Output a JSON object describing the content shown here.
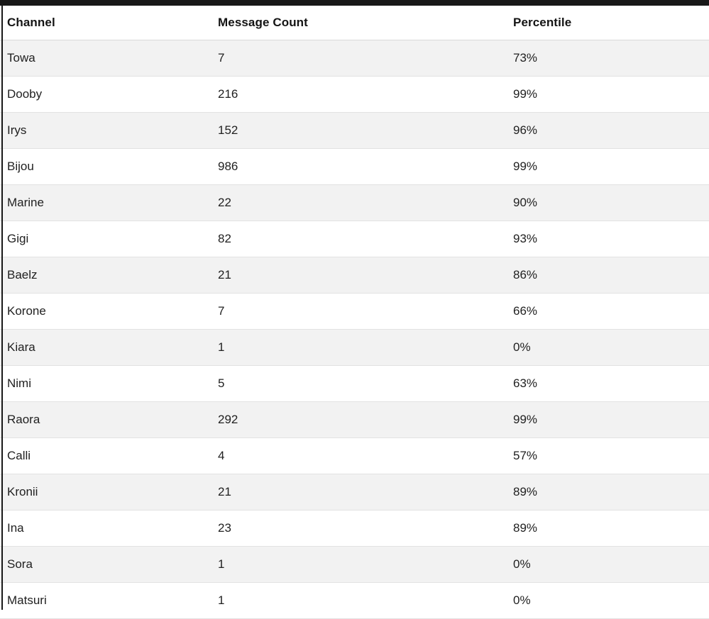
{
  "page": {
    "background_color": "#ffffff",
    "edge_bar_color": "#181818",
    "stripe_color": "#f2f2f2",
    "row_border_color": "#e2e2e2",
    "header_text_color": "#141414",
    "cell_text_color": "#212121"
  },
  "table": {
    "columns": [
      {
        "key": "channel",
        "label": "Channel"
      },
      {
        "key": "messages",
        "label": "Message Count"
      },
      {
        "key": "percentile",
        "label": "Percentile"
      }
    ],
    "rows": [
      {
        "channel": "Towa",
        "messages": "7",
        "percentile": "73%"
      },
      {
        "channel": "Dooby",
        "messages": "216",
        "percentile": "99%"
      },
      {
        "channel": "Irys",
        "messages": "152",
        "percentile": "96%"
      },
      {
        "channel": "Bijou",
        "messages": "986",
        "percentile": "99%"
      },
      {
        "channel": "Marine",
        "messages": "22",
        "percentile": "90%"
      },
      {
        "channel": "Gigi",
        "messages": "82",
        "percentile": "93%"
      },
      {
        "channel": "Baelz",
        "messages": "21",
        "percentile": "86%"
      },
      {
        "channel": "Korone",
        "messages": "7",
        "percentile": "66%"
      },
      {
        "channel": "Kiara",
        "messages": "1",
        "percentile": "0%"
      },
      {
        "channel": "Nimi",
        "messages": "5",
        "percentile": "63%"
      },
      {
        "channel": "Raora",
        "messages": "292",
        "percentile": "99%"
      },
      {
        "channel": "Calli",
        "messages": "4",
        "percentile": "57%"
      },
      {
        "channel": "Kronii",
        "messages": "21",
        "percentile": "89%"
      },
      {
        "channel": "Ina",
        "messages": "23",
        "percentile": "89%"
      },
      {
        "channel": "Sora",
        "messages": "1",
        "percentile": "0%"
      },
      {
        "channel": "Matsuri",
        "messages": "1",
        "percentile": "0%"
      }
    ]
  }
}
